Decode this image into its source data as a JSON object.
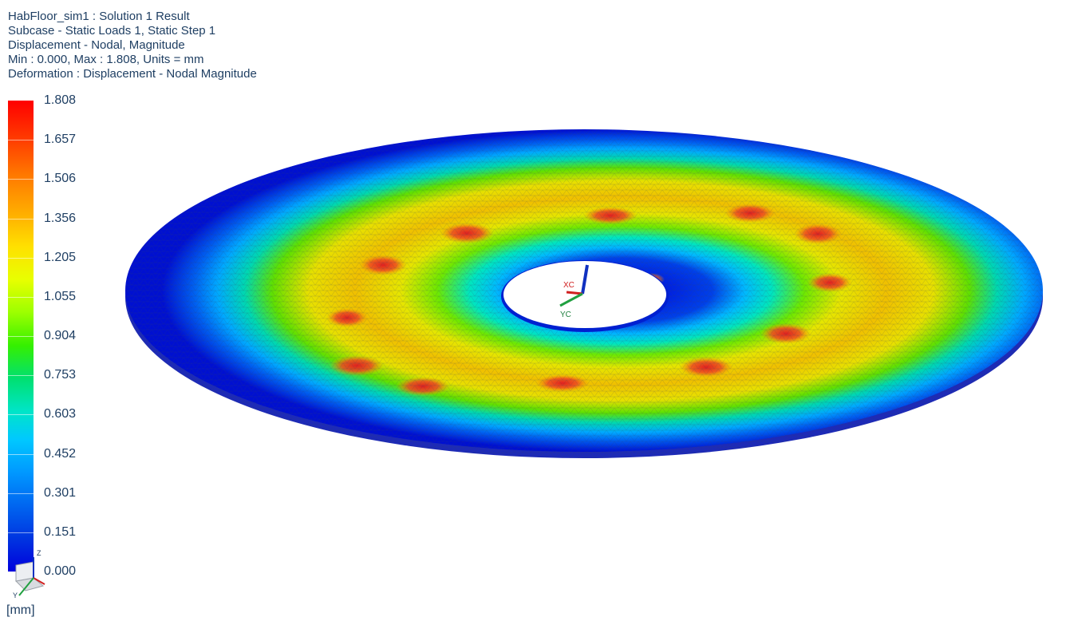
{
  "header": {
    "line1": "HabFloor_sim1 : Solution 1 Result",
    "line2": "Subcase - Static Loads 1, Static Step 1",
    "line3": "Displacement - Nodal, Magnitude",
    "line4": "Min : 0.000, Max : 1.808, Units = mm",
    "line5": "Deformation : Displacement - Nodal Magnitude"
  },
  "legend": {
    "values": [
      "1.808",
      "1.657",
      "1.506",
      "1.356",
      "1.205",
      "1.055",
      "0.904",
      "0.753",
      "0.603",
      "0.452",
      "0.301",
      "0.151",
      "0.000"
    ],
    "units": "[mm]",
    "colors": {
      "max": "#ff0000",
      "high": "#ff8c00",
      "mid_high": "#ffe000",
      "mid": "#35f000",
      "mid_low": "#00e5c8",
      "low": "#0098ff",
      "min": "#0000dd"
    }
  },
  "triad": {
    "x_label": "XC",
    "y_label": "YC",
    "small_z": "Z",
    "small_y": "Y"
  }
}
